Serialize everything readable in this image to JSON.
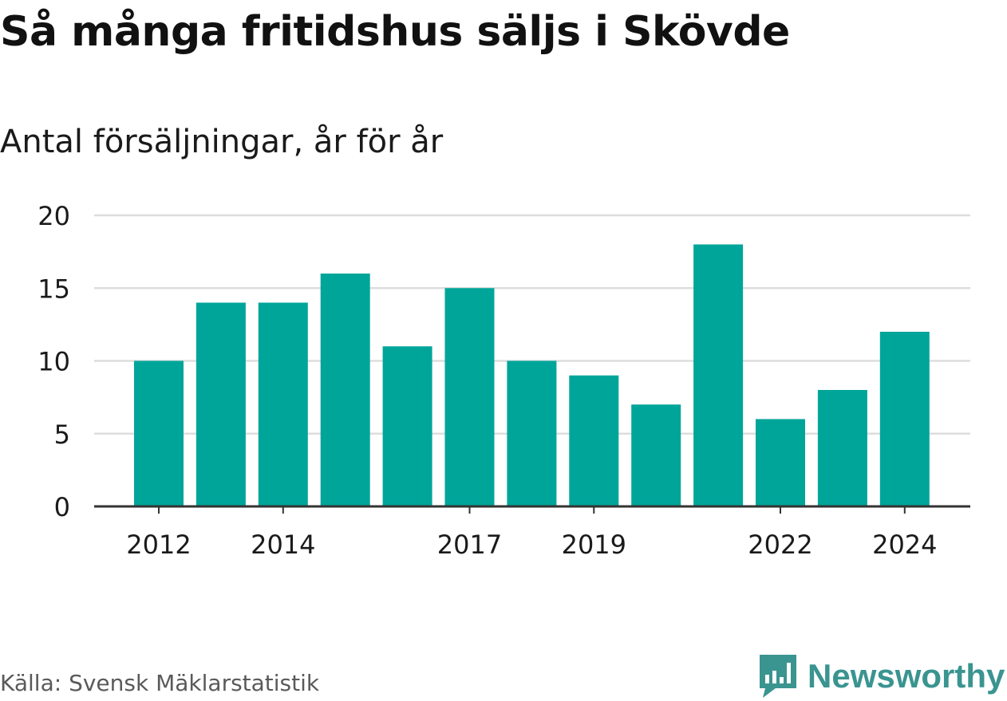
{
  "title": "Så många fritidshus säljs i Skövde",
  "subtitle": "Antal försäljningar, år för år",
  "source": "Källa: Svensk Mäklarstatistik",
  "brand": {
    "name": "Newsworthy",
    "icon": "newsworthy-logo-icon",
    "color": "#3a9490"
  },
  "colors": {
    "bar": "#00a59a",
    "grid": "#dddddd",
    "axis": "#333333",
    "text": "#1a1a1a"
  },
  "chart_data": {
    "type": "bar",
    "categories": [
      "2012",
      "2013",
      "2014",
      "2015",
      "2016",
      "2017",
      "2018",
      "2019",
      "2020",
      "2021",
      "2022",
      "2023",
      "2024"
    ],
    "values": [
      10,
      14,
      14,
      16,
      11,
      15,
      10,
      9,
      7,
      18,
      6,
      8,
      12
    ],
    "x_tick_labels": [
      "2012",
      "2014",
      "2017",
      "2019",
      "2022",
      "2024"
    ],
    "y_ticks": [
      0,
      5,
      10,
      15,
      20
    ],
    "ylim": [
      0,
      20
    ],
    "grid": true,
    "title": "Så många fritidshus säljs i Skövde",
    "subtitle": "Antal försäljningar, år för år",
    "xlabel": "",
    "ylabel": ""
  }
}
